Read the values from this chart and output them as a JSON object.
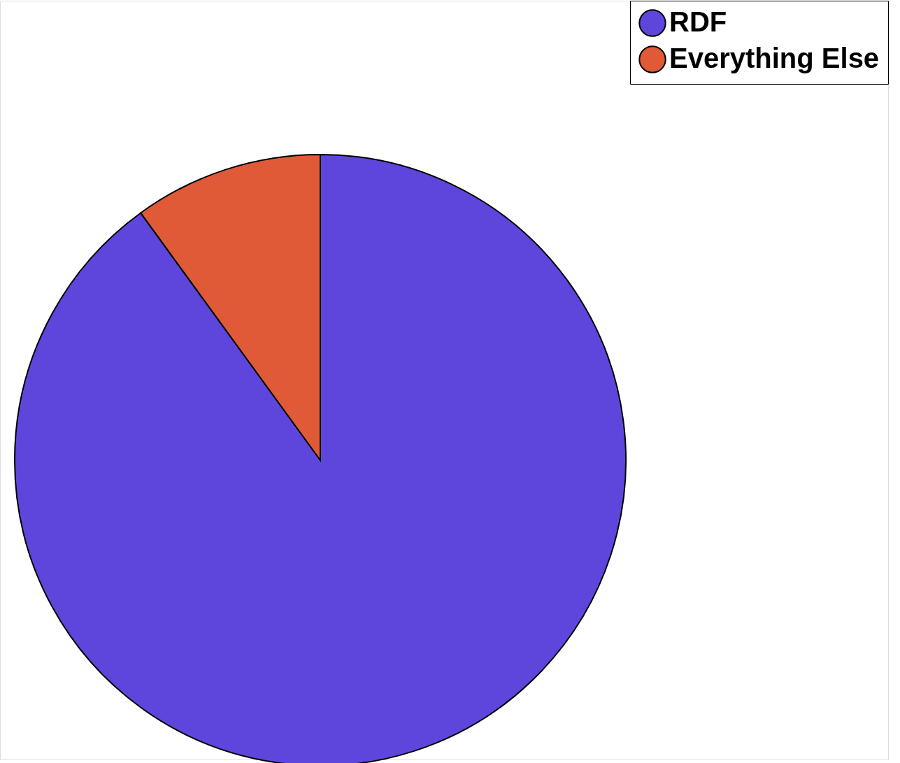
{
  "chart_data": {
    "type": "pie",
    "categories": [
      "RDF",
      "Everything Else"
    ],
    "values": [
      90,
      10
    ],
    "colors": [
      "#5e46dd",
      "#e05a38"
    ],
    "legend": "top right"
  }
}
